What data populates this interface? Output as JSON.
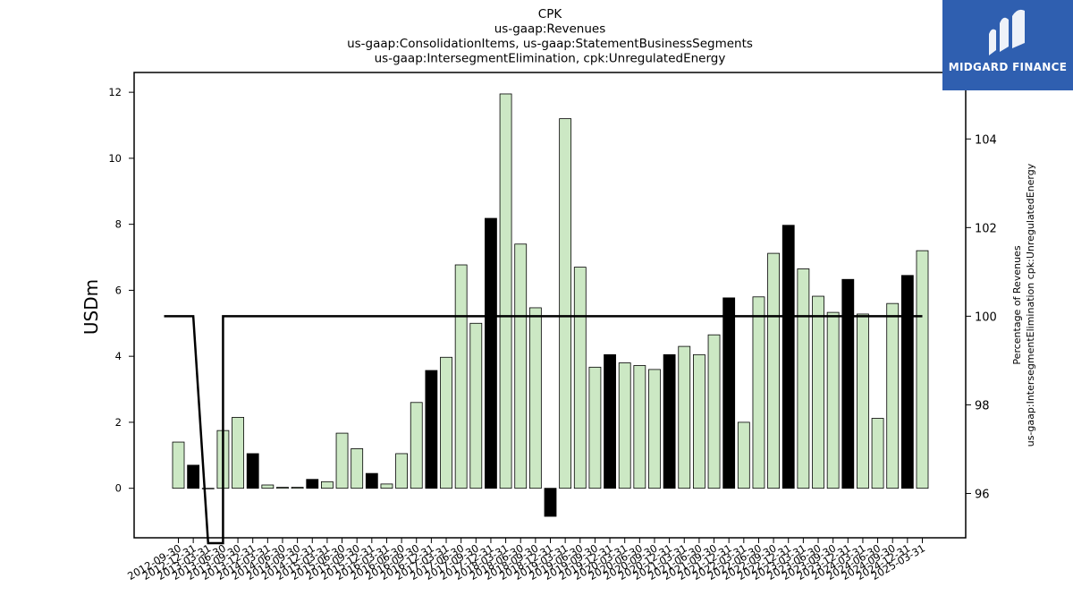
{
  "brand": {
    "name": "MIDGARD FINANCE",
    "background": "#2f5fb0"
  },
  "chart_data": {
    "type": "bar",
    "title_lines": [
      "CPK",
      "us-gaap:Revenues",
      "us-gaap:ConsolidationItems, us-gaap:StatementBusinessSegments",
      "us-gaap:IntersegmentElimination, cpk:UnregulatedEnergy"
    ],
    "ylabel": "USDm",
    "y2label_lines": [
      "Percentage of Revenues",
      "us-gaap:IntersegmentElimination cpk:UnregulatedEnergy"
    ],
    "ylim": [
      -1.5,
      12.6
    ],
    "y2lim": [
      95.0,
      105.5
    ],
    "yticks": [
      0,
      2,
      4,
      6,
      8,
      10,
      12
    ],
    "y2ticks": [
      96,
      98,
      100,
      102,
      104
    ],
    "grid": false,
    "colors": {
      "normal_bar": "#cce8c4",
      "q4_bar": "#000000",
      "edge": "#000000",
      "line": "#000000"
    },
    "categories": [
      "2012-09-30",
      "2012-12-31",
      "2013-03-31",
      "2013-06-30",
      "2013-09-30",
      "2013-12-31",
      "2014-03-31",
      "2014-06-30",
      "2014-09-30",
      "2014-12-31",
      "2015-03-31",
      "2015-06-30",
      "2015-09-30",
      "2015-12-31",
      "2016-03-31",
      "2016-06-30",
      "2016-09-30",
      "2016-12-31",
      "2017-03-31",
      "2017-06-30",
      "2017-09-30",
      "2017-12-31",
      "2018-03-31",
      "2018-06-30",
      "2018-09-30",
      "2018-12-31",
      "2019-03-31",
      "2019-06-30",
      "2019-09-30",
      "2019-12-31",
      "2020-03-31",
      "2020-06-30",
      "2020-09-30",
      "2020-12-31",
      "2021-03-31",
      "2021-06-30",
      "2021-09-30",
      "2021-12-31",
      "2022-03-31",
      "2022-06-30",
      "2022-09-30",
      "2022-12-31",
      "2023-03-31",
      "2023-06-30",
      "2023-09-30",
      "2023-12-31",
      "2024-03-31",
      "2024-06-30",
      "2024-09-30",
      "2024-12-31",
      "2025-03-31"
    ],
    "values": [
      1.4,
      0.7,
      0.0,
      1.75,
      2.15,
      1.05,
      0.1,
      0.03,
      0.03,
      0.27,
      0.2,
      1.67,
      1.2,
      0.45,
      0.13,
      1.05,
      2.6,
      3.57,
      3.97,
      6.77,
      5.0,
      8.18,
      11.95,
      7.4,
      5.47,
      -0.85,
      11.2,
      6.7,
      3.67,
      4.05,
      3.8,
      3.72,
      3.6,
      4.05,
      4.3,
      4.05,
      4.65,
      5.77,
      2.0,
      5.8,
      7.12,
      7.97,
      6.65,
      5.82,
      5.33,
      6.33,
      5.28,
      2.12,
      5.6,
      6.45,
      7.2
    ],
    "highlight_indices": [
      1,
      5,
      9,
      13,
      17,
      21,
      25,
      29,
      33,
      37,
      41,
      45,
      49
    ],
    "percentage_series": {
      "name": "Percentage of Revenues",
      "values": [
        100,
        100,
        null,
        100,
        100,
        100,
        100,
        100,
        100,
        100,
        100,
        100,
        100,
        100,
        100,
        100,
        100,
        100,
        100,
        100,
        100,
        100,
        100,
        100,
        100,
        100,
        100,
        100,
        100,
        100,
        100,
        100,
        100,
        100,
        100,
        100,
        100,
        100,
        100,
        100,
        100,
        100,
        100,
        100,
        100,
        100,
        100,
        100,
        100,
        100,
        100
      ]
    }
  }
}
